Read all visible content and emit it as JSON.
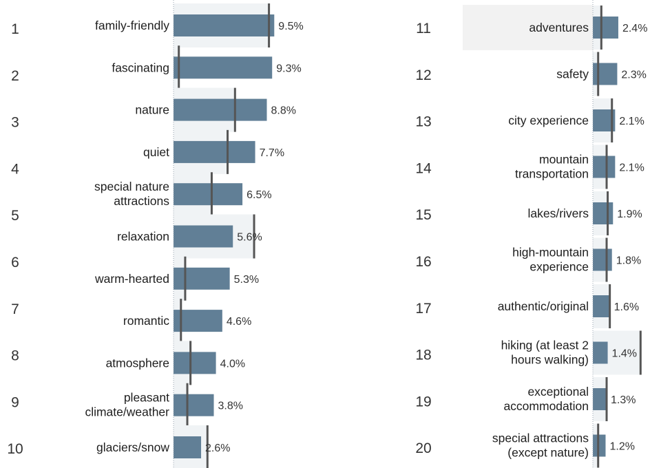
{
  "chart_data": {
    "type": "bar",
    "orientation": "horizontal",
    "value_suffix": "%",
    "colors": {
      "bar": "#617f96",
      "reference_marker": "#555555",
      "reference_shade": "#f0f3f5",
      "highlight_row": "#f2f2f2"
    },
    "grid": false,
    "legend": false,
    "xlim": [
      0,
      10
    ],
    "items": [
      {
        "rank": "1",
        "label": [
          "family-friendly"
        ],
        "value": 9.5,
        "reference": 9.0
      },
      {
        "rank": "2",
        "label": [
          "fascinating"
        ],
        "value": 9.3,
        "reference": 0.5
      },
      {
        "rank": "3",
        "label": [
          "nature"
        ],
        "value": 8.8,
        "reference": 5.8
      },
      {
        "rank": "4",
        "label": [
          "quiet"
        ],
        "value": 7.7,
        "reference": 5.1
      },
      {
        "rank": "5",
        "label": [
          "special nature",
          "attractions"
        ],
        "value": 6.5,
        "reference": 3.6
      },
      {
        "rank": "6",
        "label": [
          "relaxation"
        ],
        "value": 5.6,
        "reference": 7.6
      },
      {
        "rank": "7",
        "label": [
          "warm-hearted"
        ],
        "value": 5.3,
        "reference": 1.1
      },
      {
        "rank": "8",
        "label": [
          "romantic"
        ],
        "value": 4.6,
        "reference": 0.7
      },
      {
        "rank": "9",
        "label": [
          "atmosphere"
        ],
        "value": 4.0,
        "reference": 1.6
      },
      {
        "rank": "10",
        "label": [
          "pleasant",
          "climate/weather"
        ],
        "value": 3.8,
        "reference": 1.3
      },
      {
        "rank": "11",
        "label": [
          "glaciers/snow"
        ],
        "value": 2.6,
        "reference": 3.2
      },
      {
        "rank": "12",
        "label": [
          "adventures"
        ],
        "value": 2.4,
        "reference": 0.8,
        "highlight": true
      },
      {
        "rank": "13",
        "label": [
          "safety"
        ],
        "value": 2.3,
        "reference": 0.5
      },
      {
        "rank": "14",
        "label": [
          "city experience"
        ],
        "value": 2.1,
        "reference": 1.8
      },
      {
        "rank": "15",
        "label": [
          "mountain",
          "transportation"
        ],
        "value": 2.1,
        "reference": 1.3
      },
      {
        "rank": "16",
        "label": [
          "lakes/rivers"
        ],
        "value": 1.9,
        "reference": 1.4
      },
      {
        "rank": "17",
        "label": [
          "high-mountain",
          "experience"
        ],
        "value": 1.8,
        "reference": 1.3
      },
      {
        "rank": "18",
        "label": [
          "authentic/original"
        ],
        "value": 1.6,
        "reference": 1.6
      },
      {
        "rank": "19",
        "label": [
          "hiking (at least 2",
          "hours walking)"
        ],
        "value": 1.4,
        "reference": 4.5
      },
      {
        "rank": "20",
        "label": [
          "exceptional",
          "accommodation"
        ],
        "value": 1.3,
        "reference": 1.3
      },
      {
        "rank": "",
        "label": [
          "special attractions",
          "(except nature)"
        ],
        "value": 1.2,
        "reference": 0.5
      }
    ]
  }
}
